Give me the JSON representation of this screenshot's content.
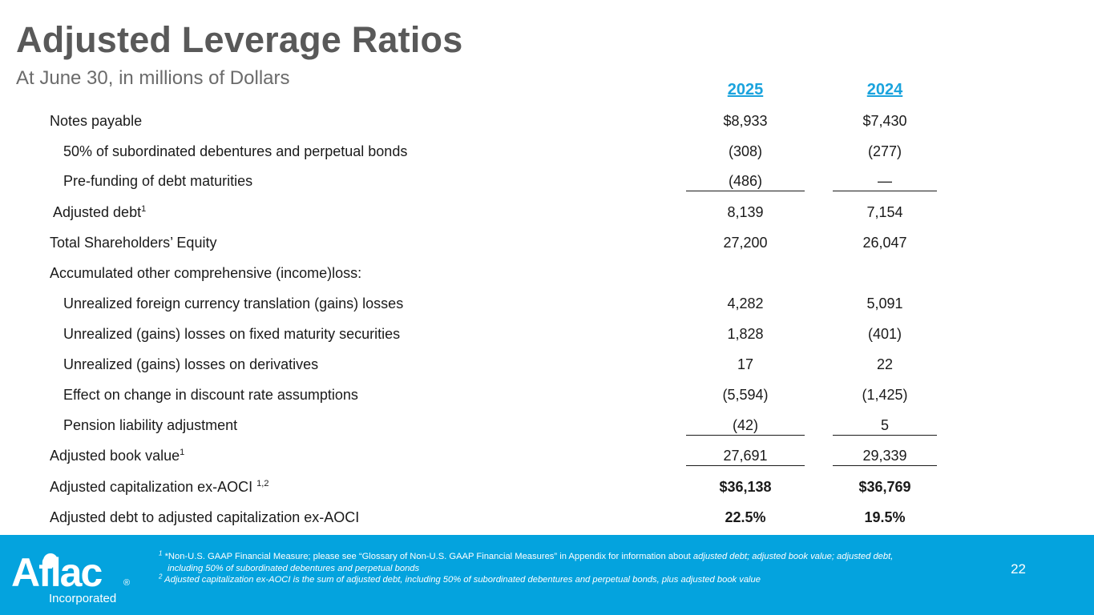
{
  "header": {
    "title": "Adjusted Leverage Ratios",
    "subtitle": "At June 30, in millions of Dollars"
  },
  "columns": [
    "2025",
    "2024"
  ],
  "rows": [
    {
      "label": "Notes payable",
      "sup": "",
      "v2025": "$8,933",
      "v2024": "$7,430"
    },
    {
      "label": "50% of subordinated debentures and perpetual bonds",
      "sup": "",
      "v2025": "(308)",
      "v2024": "(277)"
    },
    {
      "label": "Pre-funding of debt maturities",
      "sup": "",
      "v2025": "(486)",
      "v2024": "—"
    },
    {
      "label": "Adjusted debt",
      "sup": "1",
      "v2025": "8,139",
      "v2024": "7,154"
    },
    {
      "label": "Total Shareholders’ Equity",
      "sup": "",
      "v2025": "27,200",
      "v2024": "26,047"
    },
    {
      "label": "Accumulated other comprehensive (income)loss:",
      "sup": "",
      "v2025": "",
      "v2024": ""
    },
    {
      "label": "Unrealized foreign currency translation (gains) losses",
      "sup": "",
      "v2025": "4,282",
      "v2024": "5,091"
    },
    {
      "label": "Unrealized (gains) losses on fixed maturity securities",
      "sup": "",
      "v2025": "1,828",
      "v2024": "(401)"
    },
    {
      "label": "Unrealized (gains) losses on derivatives",
      "sup": "",
      "v2025": "17",
      "v2024": "22"
    },
    {
      "label": "Effect on change in discount rate assumptions",
      "sup": "",
      "v2025": "(5,594)",
      "v2024": "(1,425)"
    },
    {
      "label": "Pension liability adjustment",
      "sup": "",
      "v2025": "(42)",
      "v2024": "5"
    },
    {
      "label": "Adjusted book value",
      "sup": "1",
      "v2025": "27,691",
      "v2024": "29,339"
    },
    {
      "label": "Adjusted capitalization ex-AOCI ",
      "sup": "1,2",
      "v2025": "$36,138",
      "v2024": "$36,769"
    },
    {
      "label": "Adjusted debt to adjusted capitalization ex-AOCI",
      "sup": "",
      "v2025": "22.5%",
      "v2024": "19.5%"
    }
  ],
  "footer": {
    "brand_name": "Aflac",
    "brand_sub": "Incorporated",
    "note1_mark": "1",
    "note1_plain": "*Non-U.S. GAAP Financial Measure; please see “Glossary of Non-U.S. GAAP Financial Measures” in Appendix for information about ",
    "note1_italic": "adjusted debt; adjusted book value; adjusted debt,",
    "note1_line2": "including 50% of subordinated debentures and perpetual bonds",
    "note2_mark": "2",
    "note2_text": "Adjusted capitalization ex-AOCI is the sum of adjusted debt, including 50% of subordinated debentures and perpetual bonds, plus adjusted book value",
    "page_number": "22"
  },
  "colors": {
    "accent_blue": "#04a3de",
    "header_blue": "#1aa3dd",
    "title_gray": "#595959"
  }
}
